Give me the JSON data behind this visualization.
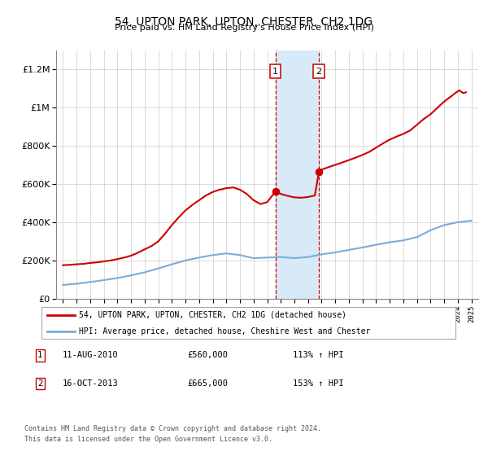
{
  "title": "54, UPTON PARK, UPTON, CHESTER, CH2 1DG",
  "subtitle": "Price paid vs. HM Land Registry's House Price Index (HPI)",
  "legend_line1": "54, UPTON PARK, UPTON, CHESTER, CH2 1DG (detached house)",
  "legend_line2": "HPI: Average price, detached house, Cheshire West and Chester",
  "sale1_date": "11-AUG-2010",
  "sale1_price": "£560,000",
  "sale1_hpi": "113% ↑ HPI",
  "sale2_date": "16-OCT-2013",
  "sale2_price": "£665,000",
  "sale2_hpi": "153% ↑ HPI",
  "footnote1": "Contains HM Land Registry data © Crown copyright and database right 2024.",
  "footnote2": "This data is licensed under the Open Government Licence v3.0.",
  "red_color": "#cc0000",
  "blue_color": "#7aacda",
  "shade_color": "#d8eaf7",
  "marker_box_color": "#cc0000",
  "sale1_x": 2010.6,
  "sale2_x": 2013.8,
  "sale1_y": 560000,
  "sale2_y": 665000,
  "ylim": [
    0,
    1300000
  ],
  "xlim": [
    1994.5,
    2025.5
  ],
  "red_x": [
    1995.0,
    1995.5,
    1996.0,
    1996.5,
    1997.0,
    1997.5,
    1998.0,
    1998.5,
    1999.0,
    1999.5,
    2000.0,
    2000.5,
    2001.0,
    2001.5,
    2002.0,
    2002.5,
    2003.0,
    2003.5,
    2004.0,
    2004.5,
    2005.0,
    2005.5,
    2006.0,
    2006.5,
    2007.0,
    2007.5,
    2008.0,
    2008.5,
    2009.0,
    2009.5,
    2010.0,
    2010.6,
    2011.0,
    2011.5,
    2012.0,
    2012.5,
    2013.0,
    2013.5,
    2013.8,
    2014.0,
    2014.5,
    2015.0,
    2015.5,
    2016.0,
    2016.5,
    2017.0,
    2017.5,
    2018.0,
    2018.5,
    2019.0,
    2019.5,
    2020.0,
    2020.5,
    2021.0,
    2021.5,
    2022.0,
    2022.3,
    2022.6,
    2022.9,
    2023.2,
    2023.5,
    2023.8,
    2024.1,
    2024.4,
    2024.6
  ],
  "red_y": [
    175000,
    177000,
    180000,
    182000,
    187000,
    190000,
    195000,
    200000,
    207000,
    215000,
    225000,
    240000,
    258000,
    275000,
    300000,
    340000,
    385000,
    425000,
    462000,
    490000,
    515000,
    540000,
    558000,
    570000,
    578000,
    582000,
    570000,
    548000,
    515000,
    495000,
    505000,
    560000,
    548000,
    538000,
    530000,
    528000,
    532000,
    540000,
    665000,
    675000,
    688000,
    700000,
    712000,
    725000,
    738000,
    752000,
    768000,
    790000,
    812000,
    832000,
    848000,
    862000,
    880000,
    910000,
    940000,
    965000,
    985000,
    1005000,
    1025000,
    1042000,
    1058000,
    1075000,
    1090000,
    1075000,
    1080000
  ],
  "blue_x": [
    1995.0,
    1996.0,
    1997.0,
    1998.0,
    1999.0,
    2000.0,
    2001.0,
    2002.0,
    2003.0,
    2004.0,
    2005.0,
    2006.0,
    2007.0,
    2008.0,
    2009.0,
    2010.0,
    2011.0,
    2012.0,
    2013.0,
    2014.0,
    2015.0,
    2016.0,
    2017.0,
    2018.0,
    2019.0,
    2020.0,
    2021.0,
    2022.0,
    2023.0,
    2024.0,
    2025.0
  ],
  "blue_y": [
    72000,
    78000,
    87000,
    97000,
    108000,
    122000,
    138000,
    158000,
    180000,
    200000,
    215000,
    228000,
    237000,
    228000,
    212000,
    215000,
    218000,
    212000,
    218000,
    232000,
    242000,
    255000,
    268000,
    282000,
    295000,
    305000,
    322000,
    358000,
    385000,
    400000,
    408000
  ]
}
